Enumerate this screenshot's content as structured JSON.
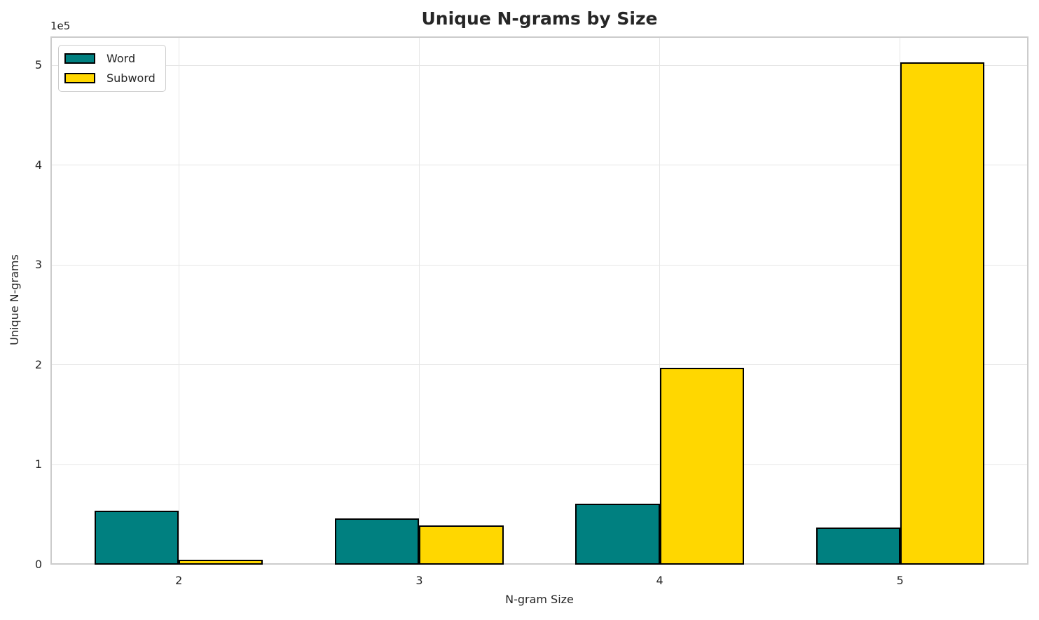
{
  "chart_data": {
    "type": "bar",
    "title": "Unique N-grams by Size",
    "xlabel": "N-gram Size",
    "ylabel": "Unique N-grams",
    "categories": [
      "2",
      "3",
      "4",
      "5"
    ],
    "series": [
      {
        "name": "Word",
        "color": "#008080",
        "values": [
          54000,
          46000,
          61000,
          37000
        ]
      },
      {
        "name": "Subword",
        "color": "#FFD700",
        "values": [
          5000,
          39000,
          197000,
          503000
        ]
      }
    ],
    "bar_edge_color": "#000000",
    "ylim": [
      0,
      529000
    ],
    "yticks": [
      0,
      100000,
      200000,
      300000,
      400000,
      500000
    ],
    "ytick_labels": [
      "0",
      "1",
      "2",
      "3",
      "4",
      "5"
    ],
    "y_offset_text": "1e5",
    "grid": true,
    "legend_position": "upper left",
    "colors": {
      "background": "#ffffff",
      "grid": "#e6e6e6",
      "spine": "#cccccc",
      "text": "#262626"
    }
  }
}
